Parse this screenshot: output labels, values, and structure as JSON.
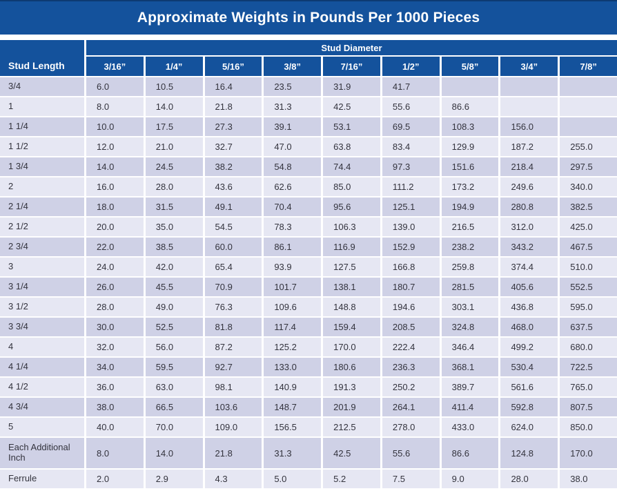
{
  "title": "Approximate Weights in Pounds Per 1000 Pieces",
  "colors": {
    "header_blue": "#14529C",
    "row_dark": "#CFD1E6",
    "row_light": "#E6E7F3",
    "header_text": "#ffffff",
    "body_text": "#33333d"
  },
  "table": {
    "corner_header": "Stud Length",
    "group_header": "Stud Diameter",
    "columns": [
      "3/16”",
      "1/4”",
      "5/16”",
      "3/8”",
      "7/16”",
      "1/2”",
      "5/8”",
      "3/4”",
      "7/8”"
    ],
    "rows": [
      {
        "label": "3/4",
        "values": [
          "6.0",
          "10.5",
          "16.4",
          "23.5",
          "31.9",
          "41.7",
          "",
          "",
          ""
        ]
      },
      {
        "label": "1",
        "values": [
          "8.0",
          "14.0",
          "21.8",
          "31.3",
          "42.5",
          "55.6",
          "86.6",
          "",
          ""
        ]
      },
      {
        "label": "1 1/4",
        "values": [
          "10.0",
          "17.5",
          "27.3",
          "39.1",
          "53.1",
          "69.5",
          "108.3",
          "156.0",
          ""
        ]
      },
      {
        "label": "1 1/2",
        "values": [
          "12.0",
          "21.0",
          "32.7",
          "47.0",
          "63.8",
          "83.4",
          "129.9",
          "187.2",
          "255.0"
        ]
      },
      {
        "label": "1 3/4",
        "values": [
          "14.0",
          "24.5",
          "38.2",
          "54.8",
          "74.4",
          "97.3",
          "151.6",
          "218.4",
          "297.5"
        ]
      },
      {
        "label": "2",
        "values": [
          "16.0",
          "28.0",
          "43.6",
          "62.6",
          "85.0",
          "111.2",
          "173.2",
          "249.6",
          "340.0"
        ]
      },
      {
        "label": "2 1/4",
        "values": [
          "18.0",
          "31.5",
          "49.1",
          "70.4",
          "95.6",
          "125.1",
          "194.9",
          "280.8",
          "382.5"
        ]
      },
      {
        "label": "2 1/2",
        "values": [
          "20.0",
          "35.0",
          "54.5",
          "78.3",
          "106.3",
          "139.0",
          "216.5",
          "312.0",
          "425.0"
        ]
      },
      {
        "label": "2 3/4",
        "values": [
          "22.0",
          "38.5",
          "60.0",
          "86.1",
          "116.9",
          "152.9",
          "238.2",
          "343.2",
          "467.5"
        ]
      },
      {
        "label": "3",
        "values": [
          "24.0",
          "42.0",
          "65.4",
          "93.9",
          "127.5",
          "166.8",
          "259.8",
          "374.4",
          "510.0"
        ]
      },
      {
        "label": "3 1/4",
        "values": [
          "26.0",
          "45.5",
          "70.9",
          "101.7",
          "138.1",
          "180.7",
          "281.5",
          "405.6",
          "552.5"
        ]
      },
      {
        "label": "3 1/2",
        "values": [
          "28.0",
          "49.0",
          "76.3",
          "109.6",
          "148.8",
          "194.6",
          "303.1",
          "436.8",
          "595.0"
        ]
      },
      {
        "label": "3 3/4",
        "values": [
          "30.0",
          "52.5",
          "81.8",
          "117.4",
          "159.4",
          "208.5",
          "324.8",
          "468.0",
          "637.5"
        ]
      },
      {
        "label": "4",
        "values": [
          "32.0",
          "56.0",
          "87.2",
          "125.2",
          "170.0",
          "222.4",
          "346.4",
          "499.2",
          "680.0"
        ]
      },
      {
        "label": "4 1/4",
        "values": [
          "34.0",
          "59.5",
          "92.7",
          "133.0",
          "180.6",
          "236.3",
          "368.1",
          "530.4",
          "722.5"
        ]
      },
      {
        "label": "4 1/2",
        "values": [
          "36.0",
          "63.0",
          "98.1",
          "140.9",
          "191.3",
          "250.2",
          "389.7",
          "561.6",
          "765.0"
        ]
      },
      {
        "label": "4 3/4",
        "values": [
          "38.0",
          "66.5",
          "103.6",
          "148.7",
          "201.9",
          "264.1",
          "411.4",
          "592.8",
          "807.5"
        ]
      },
      {
        "label": "5",
        "values": [
          "40.0",
          "70.0",
          "109.0",
          "156.5",
          "212.5",
          "278.0",
          "433.0",
          "624.0",
          "850.0"
        ]
      },
      {
        "label": "Each Additional Inch",
        "values": [
          "8.0",
          "14.0",
          "21.8",
          "31.3",
          "42.5",
          "55.6",
          "86.6",
          "124.8",
          "170.0"
        ],
        "tall": true
      },
      {
        "label": "Ferrule",
        "values": [
          "2.0",
          "2.9",
          "4.3",
          "5.0",
          "5.2",
          "7.5",
          "9.0",
          "28.0",
          "38.0"
        ]
      }
    ]
  }
}
